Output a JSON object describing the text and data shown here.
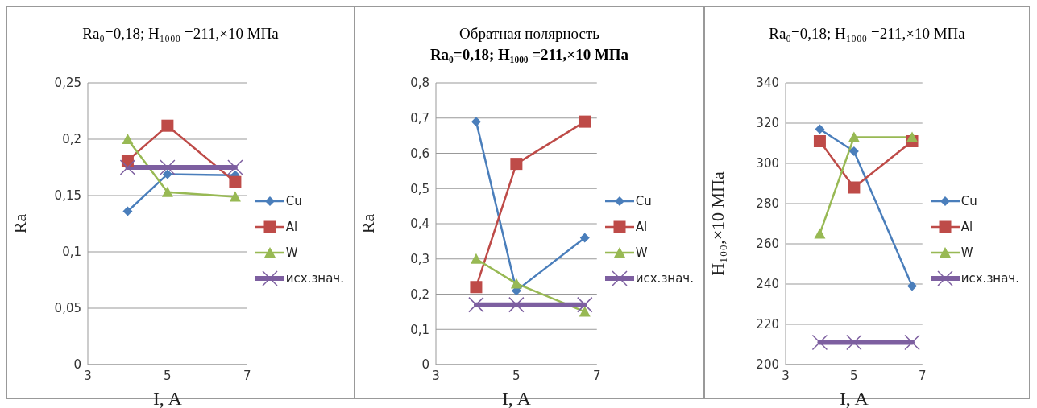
{
  "chart_data": [
    {
      "type": "line",
      "title": "Ra₀=0,18;  H₁₀₀₀ =211,×10 МПа",
      "xlabel": "I, A",
      "ylabel": "Ra",
      "x": [
        4,
        5,
        6.7
      ],
      "xlim": [
        3,
        7
      ],
      "xticks": [
        3,
        5,
        7
      ],
      "ylim": [
        0,
        0.25
      ],
      "yticks": [
        0,
        {
          "value": 0.05,
          "label": "0,05"
        },
        {
          "value": 0.1,
          "label": "0,1"
        },
        {
          "value": 0.15,
          "label": "0,15"
        },
        {
          "value": 0.2,
          "label": "0,2"
        },
        {
          "value": 0.25,
          "label": "0,25"
        }
      ],
      "grid": "y",
      "legend": "right",
      "series": [
        {
          "name": "Cu",
          "color": "#4a7ebb",
          "marker": "diamond",
          "values": [
            0.136,
            0.169,
            0.168
          ]
        },
        {
          "name": "Al",
          "color": "#be4b48",
          "marker": "square",
          "values": [
            0.181,
            0.212,
            0.162
          ]
        },
        {
          "name": "W",
          "color": "#98b954",
          "marker": "triangle",
          "values": [
            0.2,
            0.153,
            0.149
          ]
        },
        {
          "name": "исх.знач.",
          "color": "#7d5fa0",
          "marker": "cross",
          "values": [
            0.175,
            0.175,
            0.175
          ]
        }
      ]
    },
    {
      "type": "line",
      "title": "Обратная полярность",
      "subtitle": "Ra₀=0,18;  H₁₀₀₀ =211,×10 МПа",
      "xlabel": "I, A",
      "ylabel": "Ra",
      "x": [
        4,
        5,
        6.7
      ],
      "xlim": [
        3,
        7
      ],
      "xticks": [
        3,
        5,
        7
      ],
      "ylim": [
        0,
        0.8
      ],
      "yticks": [
        0,
        {
          "value": 0.1,
          "label": "0,1"
        },
        {
          "value": 0.2,
          "label": "0,2"
        },
        {
          "value": 0.3,
          "label": "0,3"
        },
        {
          "value": 0.4,
          "label": "0,4"
        },
        {
          "value": 0.5,
          "label": "0,5"
        },
        {
          "value": 0.6,
          "label": "0,6"
        },
        {
          "value": 0.7,
          "label": "0,7"
        },
        {
          "value": 0.8,
          "label": "0,8"
        }
      ],
      "grid": "y",
      "legend": "right",
      "series": [
        {
          "name": "Cu",
          "color": "#4a7ebb",
          "marker": "diamond",
          "values": [
            0.69,
            0.21,
            0.36
          ]
        },
        {
          "name": "Al",
          "color": "#be4b48",
          "marker": "square",
          "values": [
            0.22,
            0.57,
            0.69
          ]
        },
        {
          "name": "W",
          "color": "#98b954",
          "marker": "triangle",
          "values": [
            0.3,
            0.23,
            0.15
          ]
        },
        {
          "name": "исх.знач.",
          "color": "#7d5fa0",
          "marker": "cross",
          "values": [
            0.17,
            0.17,
            0.17
          ]
        }
      ]
    },
    {
      "type": "line",
      "title": "Ra₀=0,18;  H₁₀₀₀ =211,×10 МПа",
      "xlabel": "I, A",
      "ylabel": "H₁₀₀,×10 МПа",
      "x": [
        4,
        5,
        6.7
      ],
      "xlim": [
        3,
        7
      ],
      "xticks": [
        3,
        5,
        7
      ],
      "ylim": [
        200,
        340
      ],
      "yticks": [
        200,
        220,
        240,
        260,
        280,
        300,
        320,
        340
      ],
      "grid": "y",
      "legend": "right",
      "series": [
        {
          "name": "Cu",
          "color": "#4a7ebb",
          "marker": "diamond",
          "values": [
            317,
            306,
            239
          ]
        },
        {
          "name": "Al",
          "color": "#be4b48",
          "marker": "square",
          "values": [
            311,
            288,
            311
          ]
        },
        {
          "name": "W",
          "color": "#98b954",
          "marker": "triangle",
          "values": [
            265,
            313,
            313
          ]
        },
        {
          "name": "исх.знач.",
          "color": "#7d5fa0",
          "marker": "cross",
          "values": [
            211,
            211,
            211
          ]
        }
      ]
    }
  ]
}
